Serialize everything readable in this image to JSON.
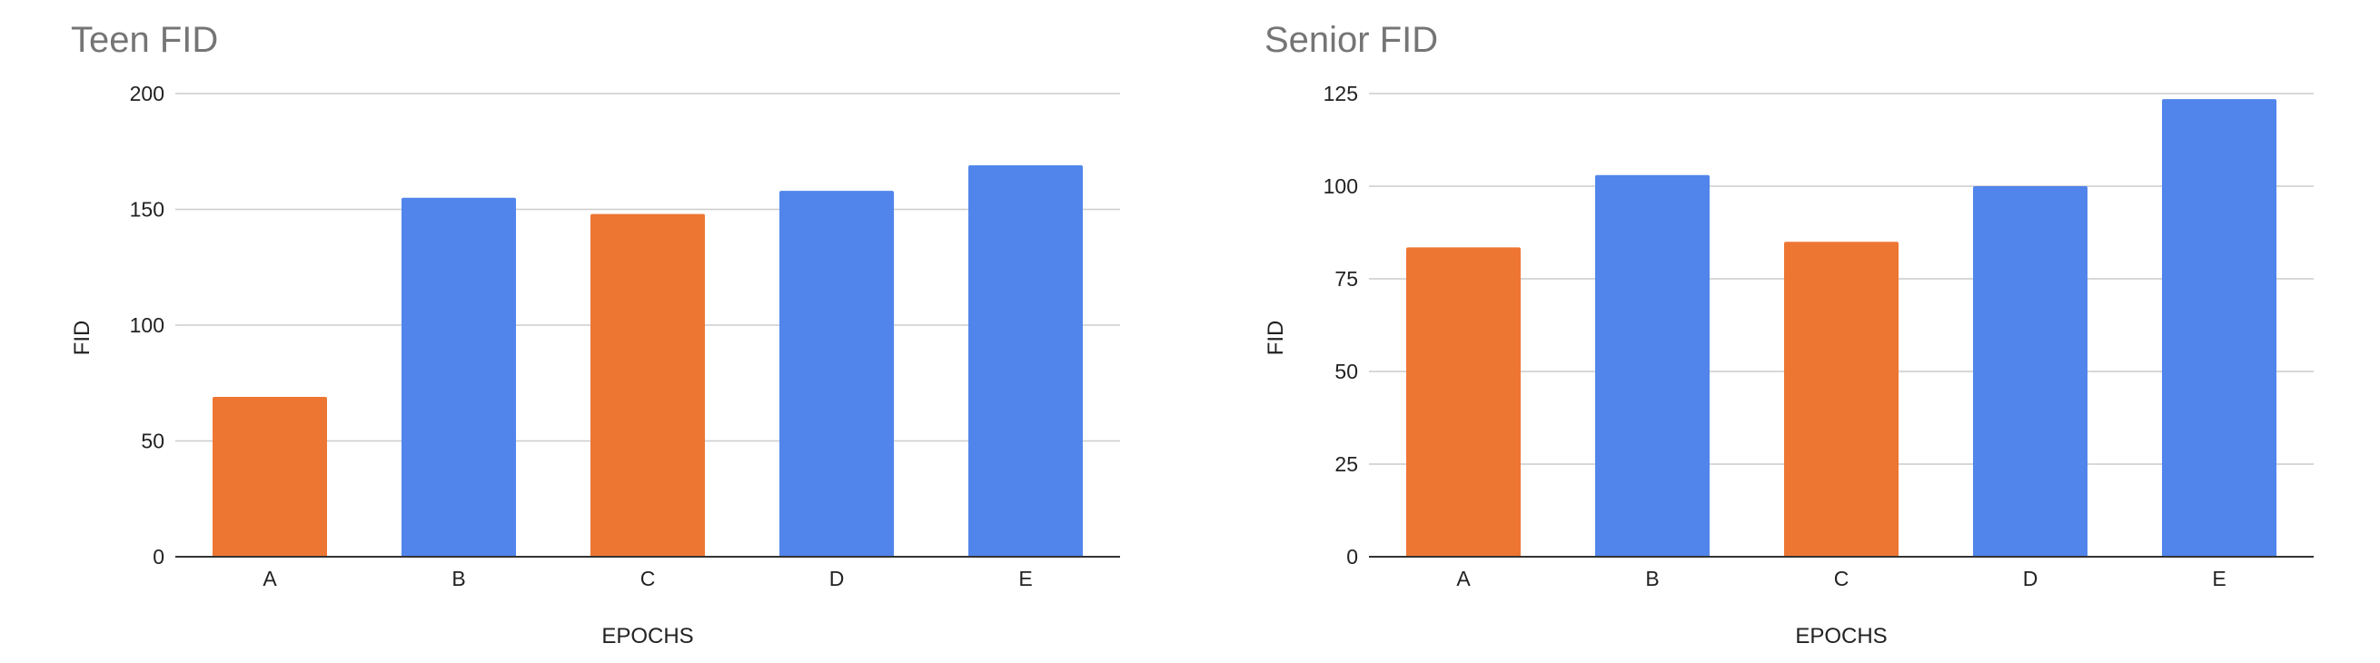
{
  "colors": {
    "orange": "#ed7632",
    "blue": "#5185ec"
  },
  "chart_data": [
    {
      "type": "bar",
      "title": "Teen FID",
      "xlabel": "EPOCHS",
      "ylabel": "FID",
      "categories": [
        "A",
        "B",
        "C",
        "D",
        "E"
      ],
      "values": [
        69,
        155,
        148,
        158,
        169
      ],
      "bar_colors": [
        "orange",
        "blue",
        "orange",
        "blue",
        "blue"
      ],
      "ylim": [
        0,
        200
      ],
      "yticks": [
        0,
        50,
        100,
        150,
        200
      ],
      "grid": true,
      "legend": "none"
    },
    {
      "type": "bar",
      "title": "Senior FID",
      "xlabel": "EPOCHS",
      "ylabel": "FID",
      "categories": [
        "A",
        "B",
        "C",
        "D",
        "E"
      ],
      "values": [
        83.5,
        103,
        85,
        100,
        123.5
      ],
      "bar_colors": [
        "orange",
        "blue",
        "orange",
        "blue",
        "blue"
      ],
      "ylim": [
        0,
        125
      ],
      "yticks": [
        0,
        25,
        50,
        75,
        100,
        125
      ],
      "grid": true,
      "legend": "none"
    }
  ]
}
